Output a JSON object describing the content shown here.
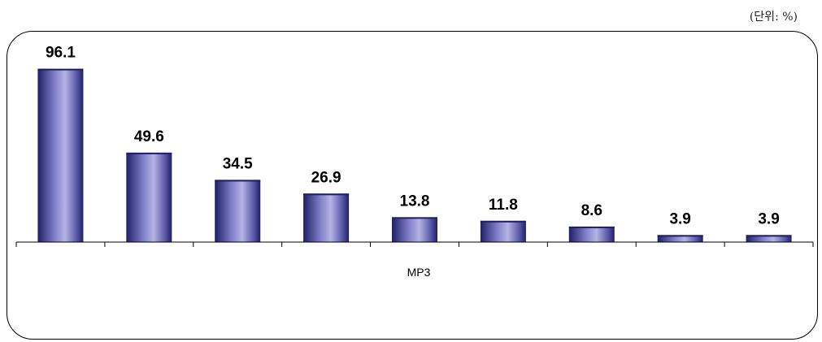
{
  "unit_note": "(단위: %)",
  "chart_data": {
    "type": "bar",
    "categories": [
      "",
      "",
      "",
      "",
      "",
      "",
      "",
      "",
      ""
    ],
    "category_label": "MP3",
    "values": [
      96.1,
      49.6,
      34.5,
      26.9,
      13.8,
      11.8,
      8.6,
      3.9,
      3.9
    ],
    "data_labels": [
      "96.1",
      "49.6",
      "34.5",
      "26.9",
      "13.8",
      "11.8",
      "8.6",
      "3.9",
      "3.9"
    ],
    "title": "",
    "xlabel": "",
    "ylabel": "",
    "ylim": [
      0,
      100
    ],
    "grid": false,
    "legend": "none",
    "colors": {
      "bar_dark": "#1f1f66",
      "bar_light": "#b4b4e6",
      "axis": "#000000"
    }
  }
}
